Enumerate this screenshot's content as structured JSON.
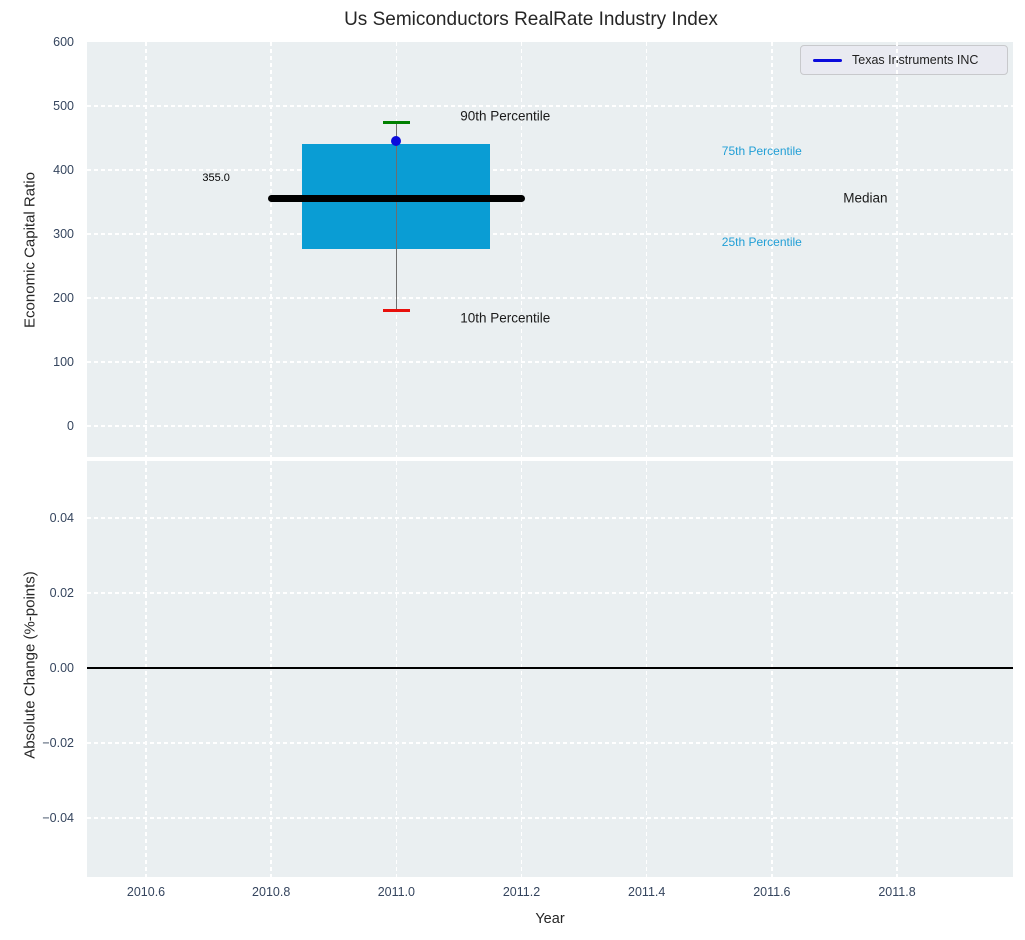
{
  "title": "Us Semiconductors RealRate Industry Index",
  "legend": {
    "label": "Texas Instruments INC",
    "line_color": "#0b0bdc"
  },
  "colors": {
    "figure_bg": "#ffffff",
    "axes_bg": "#eaeff1",
    "grid": "#ffffff",
    "tick_label": "#35455e",
    "box_fill": "#0a9dd4",
    "percentile_text": "#229fd6",
    "median_line": "#000000",
    "whisker": "#6e6e6e",
    "cap_90th": "#008000",
    "cap_10th": "#e8100c",
    "company_point": "#0b0bdc",
    "zero_line": "#000000"
  },
  "x_axis": {
    "label": "Year",
    "xlim": [
      2010.5057,
      2011.9853
    ],
    "tick_values": [
      2010.6,
      2010.8,
      2011.0,
      2011.2,
      2011.4,
      2011.6,
      2011.8
    ],
    "tick_labels": [
      "2010.6",
      "2010.8",
      "2011.0",
      "2011.2",
      "2011.4",
      "2011.6",
      "2011.8"
    ]
  },
  "chart_data": [
    {
      "type": "box",
      "ylabel": "Economic Capital Ratio",
      "ylim": [
        -48.4,
        600
      ],
      "ytick_values": [
        0,
        100,
        200,
        300,
        400,
        500,
        600
      ],
      "ytick_labels": [
        "0",
        "100",
        "200",
        "300",
        "400",
        "500",
        "600"
      ],
      "grid": true,
      "box": {
        "x": 2011.0,
        "p10": 181,
        "p25": 277,
        "median": 355,
        "p75": 441,
        "p90": 475,
        "box_half_width": 0.15,
        "median_half_width": 0.205,
        "cap_half_width": 0.022
      },
      "company_point": {
        "name": "Texas Instruments INC",
        "x": 2011.0,
        "y": 446
      },
      "annotations": [
        {
          "id": "median-value",
          "text": "355.0",
          "x": 2010.69,
          "y": 387,
          "color": "#000000",
          "size": 11
        },
        {
          "id": "90th-percentile",
          "text": "90th Percentile",
          "x": 2011.102,
          "y": 484,
          "color": "#1a1a1a",
          "size": 13.5
        },
        {
          "id": "10th-percentile",
          "text": "10th Percentile",
          "x": 2011.102,
          "y": 168,
          "color": "#1a1a1a",
          "size": 13.5
        },
        {
          "id": "75th-percentile",
          "text": "75th Percentile",
          "x": 2011.52,
          "y": 430,
          "color": "#229fd6",
          "size": 12
        },
        {
          "id": "25th-percentile",
          "text": "25th Percentile",
          "x": 2011.52,
          "y": 287,
          "color": "#229fd6",
          "size": 12
        },
        {
          "id": "median-label",
          "text": "Median",
          "x": 2011.714,
          "y": 357,
          "color": "#1a1a1a",
          "size": 13.5
        }
      ],
      "legend_position": "upper right"
    },
    {
      "type": "line",
      "ylabel": "Absolute Change (%-points)",
      "ylim": [
        -0.0557,
        0.0552
      ],
      "ytick_values": [
        -0.04,
        -0.02,
        0.0,
        0.02,
        0.04
      ],
      "ytick_labels": [
        "−0.04",
        "−0.02",
        "0.00",
        "0.02",
        "0.04"
      ],
      "grid": true,
      "zero_line_y": 0.0,
      "series": []
    }
  ]
}
